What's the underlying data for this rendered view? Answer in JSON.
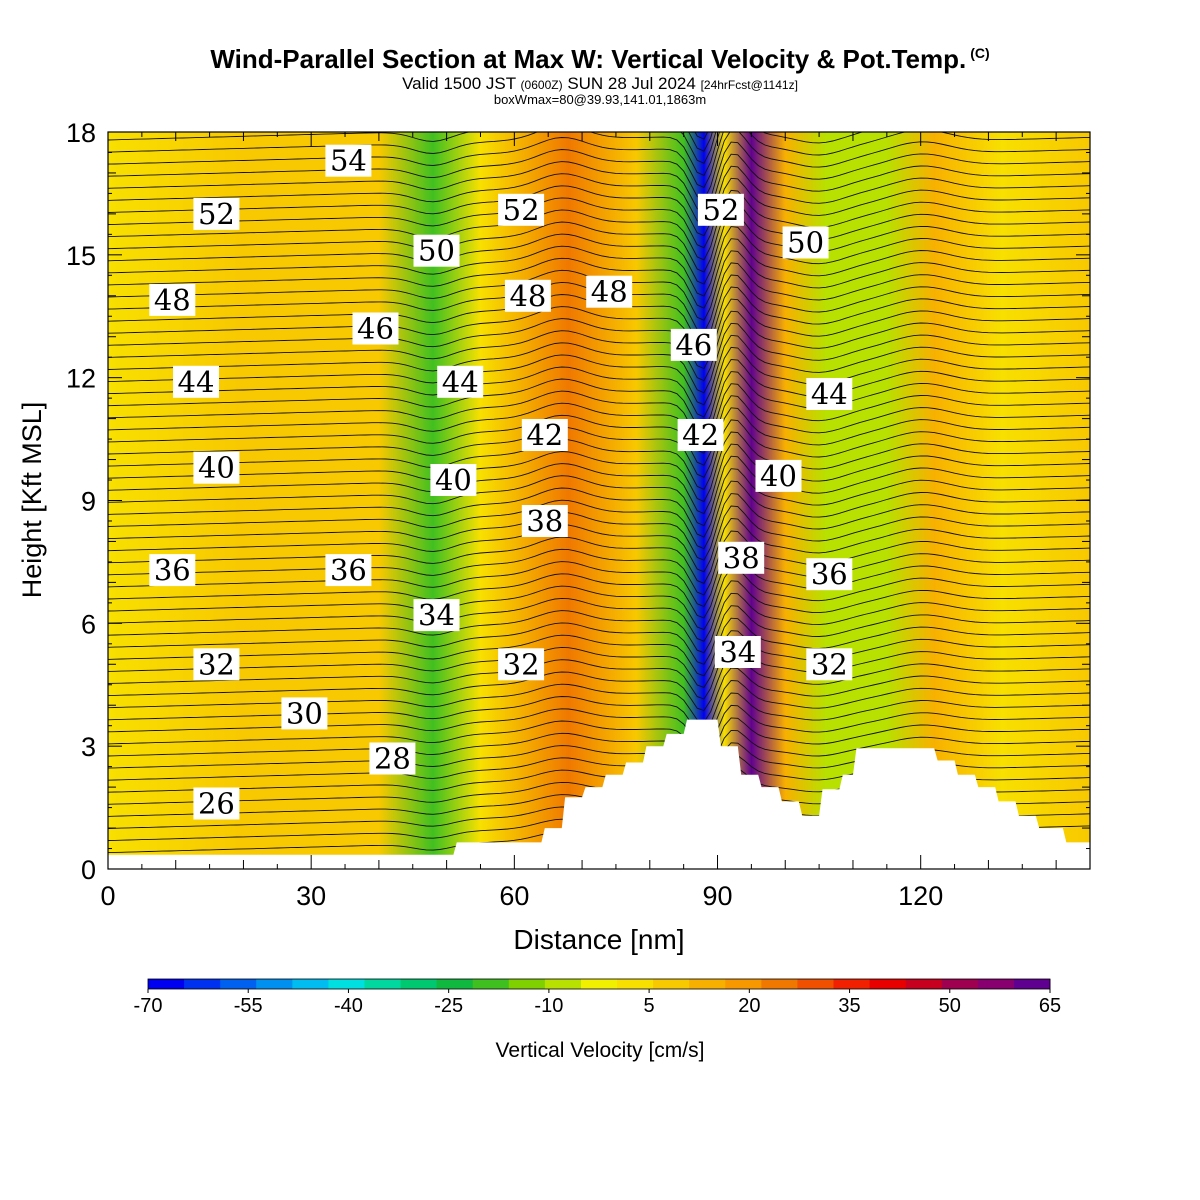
{
  "header": {
    "title": "Wind-Parallel Section at Max W: Vertical Velocity & Pot.Temp.",
    "title_mark": "(C)",
    "valid_prefix": "Valid 1500 JST",
    "valid_zulu": "(0600Z)",
    "valid_date": "SUN 28 Jul 2024",
    "valid_fcst": "[24hrFcst@1141z]",
    "box_info": "boxWmax=80@39.93,141.01,1863m"
  },
  "chart_data": {
    "type": "heatmap",
    "xlabel": "Distance [nm]",
    "ylabel": "Height [Kft MSL]",
    "xlim": [
      0,
      145
    ],
    "ylim": [
      0,
      18
    ],
    "x_ticks": [
      "0",
      "30",
      "60",
      "90",
      "120"
    ],
    "y_ticks": [
      "0",
      "3",
      "6",
      "9",
      "12",
      "15",
      "18"
    ],
    "colorbar": {
      "label": "Vertical Velocity [cm/s]",
      "tick_labels": [
        "-70",
        "-55",
        "-40",
        "-25",
        "-10",
        "5",
        "20",
        "35",
        "50",
        "65"
      ],
      "min": -70,
      "max": 65,
      "colors": [
        "#0000f0",
        "#0030f0",
        "#0060f0",
        "#0090f0",
        "#00bcf0",
        "#00e0e0",
        "#00d8a0",
        "#00c870",
        "#10b840",
        "#40c020",
        "#80d000",
        "#b8e000",
        "#f0f000",
        "#f8e000",
        "#f8c800",
        "#f8b000",
        "#f89800",
        "#f07800",
        "#f05000",
        "#f02000",
        "#e80000",
        "#c80020",
        "#a00050",
        "#880070",
        "#600090"
      ]
    },
    "velocity_field": [
      {
        "x": 0,
        "w": 5
      },
      {
        "x": 20,
        "w": 6
      },
      {
        "x": 40,
        "w": 8
      },
      {
        "x": 48,
        "w": -18
      },
      {
        "x": 55,
        "w": 3
      },
      {
        "x": 68,
        "w": 22
      },
      {
        "x": 78,
        "w": 6
      },
      {
        "x": 85,
        "w": -20
      },
      {
        "x": 88,
        "w": -65
      },
      {
        "x": 91,
        "w": 5
      },
      {
        "x": 95,
        "w": 62
      },
      {
        "x": 100,
        "w": 12
      },
      {
        "x": 106,
        "w": -10
      },
      {
        "x": 115,
        "w": -6
      },
      {
        "x": 122,
        "w": 15
      },
      {
        "x": 132,
        "w": 4
      },
      {
        "x": 145,
        "w": 8
      }
    ],
    "terrain": [
      {
        "x": 0,
        "h": 0.35
      },
      {
        "x": 51,
        "h": 0.35
      },
      {
        "x": 51.5,
        "h": 0.65
      },
      {
        "x": 64,
        "h": 0.65
      },
      {
        "x": 64.5,
        "h": 1.0
      },
      {
        "x": 67,
        "h": 1.0
      },
      {
        "x": 67.5,
        "h": 1.75
      },
      {
        "x": 70,
        "h": 1.75
      },
      {
        "x": 70.5,
        "h": 2.0
      },
      {
        "x": 73,
        "h": 2.0
      },
      {
        "x": 73.5,
        "h": 2.3
      },
      {
        "x": 76,
        "h": 2.3
      },
      {
        "x": 76.5,
        "h": 2.6
      },
      {
        "x": 79,
        "h": 2.6
      },
      {
        "x": 79.5,
        "h": 3.0
      },
      {
        "x": 82,
        "h": 3.0
      },
      {
        "x": 82.5,
        "h": 3.3
      },
      {
        "x": 85,
        "h": 3.3
      },
      {
        "x": 85.5,
        "h": 3.65
      },
      {
        "x": 90,
        "h": 3.65
      },
      {
        "x": 90.5,
        "h": 3.0
      },
      {
        "x": 93,
        "h": 3.0
      },
      {
        "x": 93.5,
        "h": 2.3
      },
      {
        "x": 96,
        "h": 2.3
      },
      {
        "x": 96.5,
        "h": 2.0
      },
      {
        "x": 99,
        "h": 2.0
      },
      {
        "x": 99.5,
        "h": 1.65
      },
      {
        "x": 102,
        "h": 1.65
      },
      {
        "x": 102.5,
        "h": 1.3
      },
      {
        "x": 105,
        "h": 1.3
      },
      {
        "x": 105.5,
        "h": 1.95
      },
      {
        "x": 108,
        "h": 1.95
      },
      {
        "x": 108.5,
        "h": 2.3
      },
      {
        "x": 110,
        "h": 2.3
      },
      {
        "x": 110.5,
        "h": 2.95
      },
      {
        "x": 122,
        "h": 2.95
      },
      {
        "x": 122.5,
        "h": 2.65
      },
      {
        "x": 125,
        "h": 2.65
      },
      {
        "x": 125.5,
        "h": 2.3
      },
      {
        "x": 128,
        "h": 2.3
      },
      {
        "x": 128.5,
        "h": 2.0
      },
      {
        "x": 131,
        "h": 2.0
      },
      {
        "x": 131.5,
        "h": 1.65
      },
      {
        "x": 134,
        "h": 1.65
      },
      {
        "x": 134.5,
        "h": 1.3
      },
      {
        "x": 137,
        "h": 1.3
      },
      {
        "x": 137.5,
        "h": 1.0
      },
      {
        "x": 141,
        "h": 1.0
      },
      {
        "x": 141.5,
        "h": 0.65
      },
      {
        "x": 145,
        "h": 0.65
      }
    ],
    "theta_labels": [
      {
        "text": "54",
        "x": 35.5,
        "y": 17.3
      },
      {
        "text": "52",
        "x": 16,
        "y": 16.0
      },
      {
        "text": "52",
        "x": 61,
        "y": 16.1
      },
      {
        "text": "52",
        "x": 90.5,
        "y": 16.1
      },
      {
        "text": "50",
        "x": 48.5,
        "y": 15.1
      },
      {
        "text": "50",
        "x": 103,
        "y": 15.3
      },
      {
        "text": "48",
        "x": 9.5,
        "y": 13.9
      },
      {
        "text": "48",
        "x": 62,
        "y": 14.0
      },
      {
        "text": "48",
        "x": 74,
        "y": 14.1
      },
      {
        "text": "46",
        "x": 39.5,
        "y": 13.2
      },
      {
        "text": "46",
        "x": 86.5,
        "y": 12.8
      },
      {
        "text": "44",
        "x": 13,
        "y": 11.9
      },
      {
        "text": "44",
        "x": 52,
        "y": 11.9
      },
      {
        "text": "44",
        "x": 106.5,
        "y": 11.6
      },
      {
        "text": "42",
        "x": 64.5,
        "y": 10.6
      },
      {
        "text": "42",
        "x": 87.5,
        "y": 10.6
      },
      {
        "text": "40",
        "x": 16,
        "y": 9.8
      },
      {
        "text": "40",
        "x": 51,
        "y": 9.5
      },
      {
        "text": "40",
        "x": 99,
        "y": 9.6
      },
      {
        "text": "38",
        "x": 64.5,
        "y": 8.5
      },
      {
        "text": "38",
        "x": 93.5,
        "y": 7.6
      },
      {
        "text": "36",
        "x": 9.5,
        "y": 7.3
      },
      {
        "text": "36",
        "x": 35.5,
        "y": 7.3
      },
      {
        "text": "36",
        "x": 106.5,
        "y": 7.2
      },
      {
        "text": "34",
        "x": 48.5,
        "y": 6.2
      },
      {
        "text": "34",
        "x": 93,
        "y": 5.3
      },
      {
        "text": "32",
        "x": 16,
        "y": 5.0
      },
      {
        "text": "32",
        "x": 61,
        "y": 5.0
      },
      {
        "text": "32",
        "x": 106.5,
        "y": 5.0
      },
      {
        "text": "30",
        "x": 29,
        "y": 3.8
      },
      {
        "text": "28",
        "x": 42,
        "y": 2.7
      },
      {
        "text": "26",
        "x": 16,
        "y": 1.6
      }
    ]
  }
}
